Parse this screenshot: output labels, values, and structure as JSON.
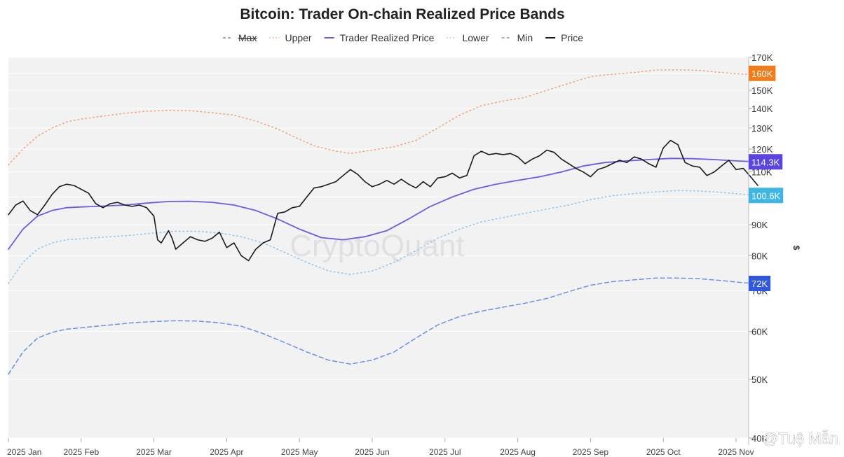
{
  "colors": {
    "upper": "#f0a078",
    "trader": "#6b5ce7",
    "lower": "#8fc3e8",
    "min": "#6e8ee8",
    "max": "#888888",
    "price": "#1a1a1a",
    "badge_upper": "#f07d1a",
    "badge_trader": "#5b45e0",
    "badge_lower": "#3fb5e6",
    "badge_min": "#2f57e0",
    "plot_bg": "#f2f2f2"
  },
  "watermark": "CryptoQuant",
  "credit": "@Tuệ Mẫn",
  "chart_data": {
    "type": "line",
    "title": "Bitcoin: Trader On-chain Realized Price Bands",
    "ylabel": "$",
    "yscale": "log",
    "ylim": [
      40000,
      170000
    ],
    "x_ticks": [
      "2025 Jan",
      "2025 Feb",
      "2025 Mar",
      "2025 Apr",
      "2025 May",
      "2025 Jun",
      "2025 Jul",
      "2025 Aug",
      "2025 Sep",
      "2025 Oct",
      "2025 Nov"
    ],
    "y_ticks": [
      {
        "value": 40000,
        "label": "40K"
      },
      {
        "value": 50000,
        "label": "50K"
      },
      {
        "value": 60000,
        "label": "60K"
      },
      {
        "value": 70000,
        "label": "70K"
      },
      {
        "value": 80000,
        "label": "80K"
      },
      {
        "value": 90000,
        "label": "90K"
      },
      {
        "value": 100000,
        "label": "100K"
      },
      {
        "value": 110000,
        "label": "110K"
      },
      {
        "value": 120000,
        "label": "120K"
      },
      {
        "value": 130000,
        "label": "130K"
      },
      {
        "value": 140000,
        "label": "140K"
      },
      {
        "value": 150000,
        "label": "150K"
      },
      {
        "value": 160000,
        "label": "160K"
      },
      {
        "value": 170000,
        "label": "170K"
      }
    ],
    "legend": [
      {
        "name": "Max",
        "style": "dashed",
        "color": "#888888",
        "strike": true
      },
      {
        "name": "Upper",
        "style": "dotted",
        "color": "#f0a078"
      },
      {
        "name": "Trader Realized Price",
        "style": "solid",
        "color": "#6b5ce7"
      },
      {
        "name": "Lower",
        "style": "dotted",
        "color": "#8fc3e8"
      },
      {
        "name": "Min",
        "style": "dashed",
        "color": "#6e8ee8"
      },
      {
        "name": "Price",
        "style": "solid",
        "color": "#1a1a1a"
      }
    ],
    "end_labels": [
      {
        "label": "160K",
        "value": 160000,
        "color": "#f07d1a"
      },
      {
        "label": "114.3K",
        "value": 114300,
        "color": "#5b45e0"
      },
      {
        "label": "100.6K",
        "value": 100600,
        "color": "#3fb5e6"
      },
      {
        "label": "72K",
        "value": 72000,
        "color": "#2f57e0"
      }
    ],
    "series": [
      {
        "name": "Upper",
        "style": "dotted",
        "color": "#f0a078",
        "points": [
          [
            0,
            113000
          ],
          [
            0.2,
            120000
          ],
          [
            0.4,
            126000
          ],
          [
            0.6,
            130000
          ],
          [
            0.8,
            133000
          ],
          [
            1.0,
            134500
          ],
          [
            1.3,
            136000
          ],
          [
            1.6,
            137500
          ],
          [
            1.9,
            138500
          ],
          [
            2.2,
            139000
          ],
          [
            2.5,
            138800
          ],
          [
            2.8,
            137800
          ],
          [
            3.1,
            136500
          ],
          [
            3.4,
            133500
          ],
          [
            3.7,
            129500
          ],
          [
            4.0,
            124500
          ],
          [
            4.2,
            121500
          ],
          [
            4.5,
            119000
          ],
          [
            4.7,
            118000
          ],
          [
            5.0,
            119500
          ],
          [
            5.3,
            121000
          ],
          [
            5.6,
            124000
          ],
          [
            5.9,
            130000
          ],
          [
            6.2,
            136500
          ],
          [
            6.5,
            141500
          ],
          [
            6.8,
            144000
          ],
          [
            7.1,
            146000
          ],
          [
            7.4,
            150000
          ],
          [
            7.7,
            154000
          ],
          [
            8.0,
            158000
          ],
          [
            8.3,
            159500
          ],
          [
            8.6,
            160500
          ],
          [
            8.9,
            162000
          ],
          [
            9.2,
            162200
          ],
          [
            9.5,
            161800
          ],
          [
            9.8,
            160500
          ],
          [
            10.1,
            159500
          ],
          [
            10.3,
            160000
          ]
        ]
      },
      {
        "name": "Trader Realized Price",
        "style": "solid",
        "color": "#6b5ce7",
        "points": [
          [
            0,
            82000
          ],
          [
            0.2,
            88500
          ],
          [
            0.4,
            93000
          ],
          [
            0.6,
            95000
          ],
          [
            0.8,
            96000
          ],
          [
            1.0,
            96300
          ],
          [
            1.3,
            96600
          ],
          [
            1.6,
            97000
          ],
          [
            1.9,
            97700
          ],
          [
            2.2,
            98300
          ],
          [
            2.5,
            98400
          ],
          [
            2.8,
            98000
          ],
          [
            3.1,
            97000
          ],
          [
            3.4,
            95000
          ],
          [
            3.7,
            92000
          ],
          [
            4.0,
            88500
          ],
          [
            4.3,
            85700
          ],
          [
            4.6,
            85000
          ],
          [
            4.9,
            86000
          ],
          [
            5.2,
            88000
          ],
          [
            5.5,
            92000
          ],
          [
            5.8,
            96500
          ],
          [
            6.1,
            100000
          ],
          [
            6.4,
            103000
          ],
          [
            6.7,
            105000
          ],
          [
            7.0,
            106500
          ],
          [
            7.3,
            108000
          ],
          [
            7.6,
            110000
          ],
          [
            7.9,
            112500
          ],
          [
            8.2,
            114000
          ],
          [
            8.5,
            114700
          ],
          [
            8.8,
            115300
          ],
          [
            9.1,
            115800
          ],
          [
            9.4,
            115700
          ],
          [
            9.7,
            115300
          ],
          [
            10.0,
            114700
          ],
          [
            10.3,
            114300
          ]
        ]
      },
      {
        "name": "Lower",
        "style": "dotted",
        "color": "#8fc3e8",
        "points": [
          [
            0,
            72000
          ],
          [
            0.2,
            78000
          ],
          [
            0.4,
            82000
          ],
          [
            0.6,
            84000
          ],
          [
            0.8,
            85000
          ],
          [
            1.1,
            85500
          ],
          [
            1.4,
            86000
          ],
          [
            1.7,
            86500
          ],
          [
            2.0,
            87200
          ],
          [
            2.3,
            87800
          ],
          [
            2.6,
            87800
          ],
          [
            2.9,
            87200
          ],
          [
            3.2,
            86000
          ],
          [
            3.5,
            84000
          ],
          [
            3.8,
            81000
          ],
          [
            4.1,
            78000
          ],
          [
            4.4,
            75500
          ],
          [
            4.7,
            74500
          ],
          [
            5.0,
            75500
          ],
          [
            5.3,
            78000
          ],
          [
            5.6,
            81500
          ],
          [
            5.9,
            85500
          ],
          [
            6.2,
            88500
          ],
          [
            6.5,
            91000
          ],
          [
            6.8,
            92500
          ],
          [
            7.1,
            94000
          ],
          [
            7.4,
            95500
          ],
          [
            7.7,
            97000
          ],
          [
            8.0,
            99000
          ],
          [
            8.3,
            100500
          ],
          [
            8.6,
            101300
          ],
          [
            8.9,
            102000
          ],
          [
            9.2,
            102500
          ],
          [
            9.5,
            102300
          ],
          [
            9.8,
            101800
          ],
          [
            10.1,
            101000
          ],
          [
            10.3,
            100600
          ]
        ]
      },
      {
        "name": "Min",
        "style": "dashed",
        "color": "#6e8ee8",
        "points": [
          [
            0,
            51000
          ],
          [
            0.2,
            55500
          ],
          [
            0.4,
            58500
          ],
          [
            0.6,
            59800
          ],
          [
            0.8,
            60500
          ],
          [
            1.1,
            61000
          ],
          [
            1.4,
            61500
          ],
          [
            1.7,
            62000
          ],
          [
            2.0,
            62300
          ],
          [
            2.3,
            62500
          ],
          [
            2.6,
            62400
          ],
          [
            2.9,
            62000
          ],
          [
            3.2,
            61200
          ],
          [
            3.5,
            59500
          ],
          [
            3.8,
            57500
          ],
          [
            4.1,
            55500
          ],
          [
            4.4,
            53800
          ],
          [
            4.7,
            53000
          ],
          [
            5.0,
            53800
          ],
          [
            5.3,
            55500
          ],
          [
            5.6,
            58500
          ],
          [
            5.9,
            61500
          ],
          [
            6.2,
            63500
          ],
          [
            6.5,
            64800
          ],
          [
            6.8,
            65800
          ],
          [
            7.1,
            66800
          ],
          [
            7.4,
            68000
          ],
          [
            7.7,
            69800
          ],
          [
            8.0,
            71500
          ],
          [
            8.3,
            72500
          ],
          [
            8.6,
            73000
          ],
          [
            8.9,
            73500
          ],
          [
            9.2,
            73500
          ],
          [
            9.5,
            73300
          ],
          [
            9.8,
            72800
          ],
          [
            10.1,
            72200
          ],
          [
            10.3,
            72000
          ]
        ]
      },
      {
        "name": "Price",
        "style": "solid",
        "color": "#1a1a1a",
        "points": [
          [
            0,
            93500
          ],
          [
            0.1,
            97000
          ],
          [
            0.2,
            98500
          ],
          [
            0.3,
            95000
          ],
          [
            0.4,
            93500
          ],
          [
            0.5,
            97000
          ],
          [
            0.6,
            101000
          ],
          [
            0.7,
            104000
          ],
          [
            0.8,
            105000
          ],
          [
            0.9,
            104500
          ],
          [
            1.0,
            103000
          ],
          [
            1.1,
            101500
          ],
          [
            1.2,
            97500
          ],
          [
            1.3,
            96000
          ],
          [
            1.4,
            97500
          ],
          [
            1.5,
            98000
          ],
          [
            1.6,
            97000
          ],
          [
            1.7,
            96500
          ],
          [
            1.8,
            97000
          ],
          [
            1.9,
            96000
          ],
          [
            2.0,
            93000
          ],
          [
            2.05,
            85000
          ],
          [
            2.1,
            84000
          ],
          [
            2.2,
            88000
          ],
          [
            2.25,
            85500
          ],
          [
            2.3,
            82000
          ],
          [
            2.4,
            84000
          ],
          [
            2.5,
            86000
          ],
          [
            2.6,
            85000
          ],
          [
            2.7,
            84500
          ],
          [
            2.8,
            85500
          ],
          [
            2.9,
            87500
          ],
          [
            3.0,
            82500
          ],
          [
            3.1,
            84000
          ],
          [
            3.2,
            80000
          ],
          [
            3.3,
            78500
          ],
          [
            3.4,
            82000
          ],
          [
            3.5,
            84000
          ],
          [
            3.6,
            85000
          ],
          [
            3.7,
            94000
          ],
          [
            3.8,
            94500
          ],
          [
            3.9,
            96000
          ],
          [
            4.0,
            96500
          ],
          [
            4.1,
            100000
          ],
          [
            4.2,
            103500
          ],
          [
            4.3,
            104000
          ],
          [
            4.4,
            105000
          ],
          [
            4.5,
            106000
          ],
          [
            4.6,
            108500
          ],
          [
            4.7,
            111000
          ],
          [
            4.8,
            109000
          ],
          [
            4.9,
            106000
          ],
          [
            5.0,
            104000
          ],
          [
            5.1,
            105000
          ],
          [
            5.2,
            106500
          ],
          [
            5.3,
            105000
          ],
          [
            5.4,
            107000
          ],
          [
            5.5,
            105000
          ],
          [
            5.6,
            103500
          ],
          [
            5.7,
            106000
          ],
          [
            5.8,
            104000
          ],
          [
            5.9,
            107500
          ],
          [
            6.0,
            108000
          ],
          [
            6.1,
            109500
          ],
          [
            6.2,
            107500
          ],
          [
            6.3,
            108500
          ],
          [
            6.4,
            117000
          ],
          [
            6.5,
            119000
          ],
          [
            6.6,
            117500
          ],
          [
            6.7,
            118000
          ],
          [
            6.8,
            117500
          ],
          [
            6.9,
            118000
          ],
          [
            7.0,
            116500
          ],
          [
            7.1,
            113500
          ],
          [
            7.2,
            115500
          ],
          [
            7.3,
            117000
          ],
          [
            7.4,
            119500
          ],
          [
            7.5,
            118500
          ],
          [
            7.6,
            115500
          ],
          [
            7.7,
            113500
          ],
          [
            7.8,
            111500
          ],
          [
            7.9,
            110000
          ],
          [
            8.0,
            108000
          ],
          [
            8.1,
            111000
          ],
          [
            8.2,
            112000
          ],
          [
            8.3,
            113500
          ],
          [
            8.4,
            115000
          ],
          [
            8.5,
            114000
          ],
          [
            8.6,
            116500
          ],
          [
            8.7,
            115500
          ],
          [
            8.8,
            113500
          ],
          [
            8.9,
            112000
          ],
          [
            9.0,
            120500
          ],
          [
            9.1,
            124000
          ],
          [
            9.2,
            122000
          ],
          [
            9.3,
            114000
          ],
          [
            9.4,
            112500
          ],
          [
            9.5,
            112000
          ],
          [
            9.6,
            108500
          ],
          [
            9.7,
            110000
          ],
          [
            9.8,
            112500
          ],
          [
            9.9,
            115000
          ],
          [
            10.0,
            111000
          ],
          [
            10.1,
            111500
          ],
          [
            10.2,
            108000
          ],
          [
            10.3,
            104500
          ]
        ]
      }
    ]
  }
}
